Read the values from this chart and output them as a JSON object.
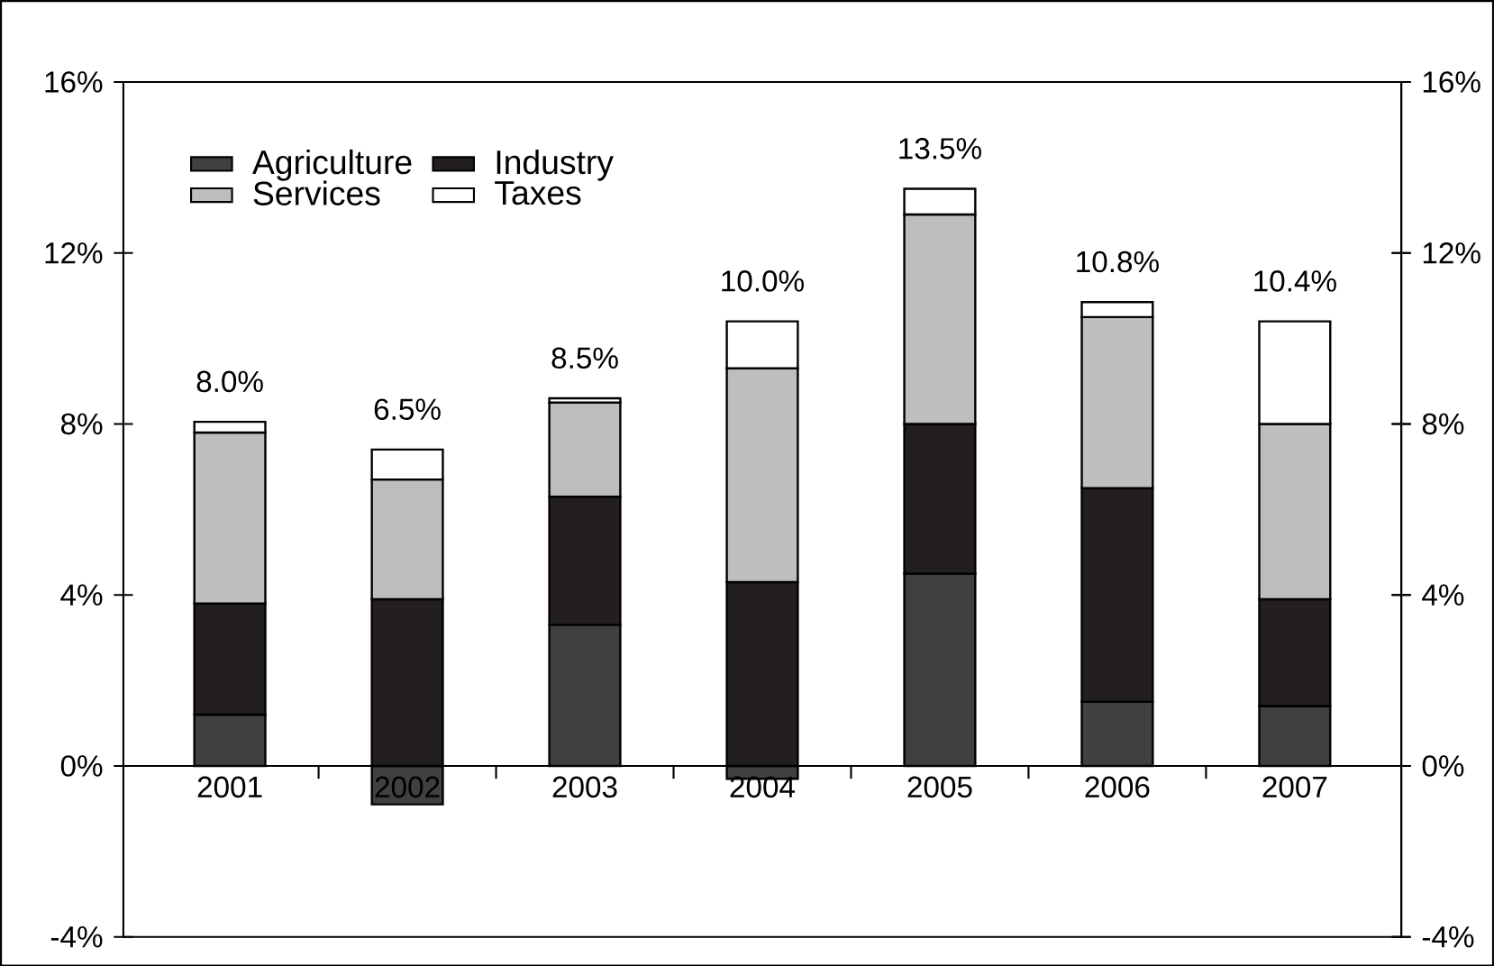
{
  "chart_data": {
    "type": "bar",
    "stacked": true,
    "categories": [
      "2001",
      "2002",
      "2003",
      "2004",
      "2005",
      "2006",
      "2007"
    ],
    "series": [
      {
        "name": "Agriculture",
        "color": "#404040",
        "values": [
          1.2,
          -0.9,
          3.3,
          -0.3,
          4.5,
          1.5,
          1.4
        ]
      },
      {
        "name": "Industry",
        "color": "#231f20",
        "values": [
          2.6,
          3.9,
          3.0,
          4.3,
          3.5,
          5.0,
          2.5
        ]
      },
      {
        "name": "Services",
        "color": "#bcbec0",
        "values": [
          4.0,
          2.8,
          2.2,
          5.0,
          4.9,
          4.0,
          4.1
        ]
      },
      {
        "name": "Taxes",
        "color": "#ffffff",
        "values": [
          0.25,
          0.7,
          0.1,
          1.1,
          0.6,
          0.35,
          2.4
        ]
      }
    ],
    "totals": [
      "8.0%",
      "6.5%",
      "8.5%",
      "10.0%",
      "13.5%",
      "10.8%",
      "10.4%"
    ],
    "ylim": [
      -4,
      16
    ],
    "yticks": [
      {
        "value": -4,
        "label": "-4%"
      },
      {
        "value": 0,
        "label": "0%"
      },
      {
        "value": 4,
        "label": "4%"
      },
      {
        "value": 8,
        "label": "8%"
      },
      {
        "value": 12,
        "label": "12%"
      },
      {
        "value": 16,
        "label": "16%"
      }
    ],
    "y2lim": [
      -4,
      16
    ],
    "y2ticks": [
      {
        "value": -4,
        "label": "-4%"
      },
      {
        "value": 0,
        "label": "0%"
      },
      {
        "value": 4,
        "label": "4%"
      },
      {
        "value": 8,
        "label": "8%"
      },
      {
        "value": 12,
        "label": "12%"
      },
      {
        "value": 16,
        "label": "16%"
      }
    ],
    "legend": "top left"
  }
}
